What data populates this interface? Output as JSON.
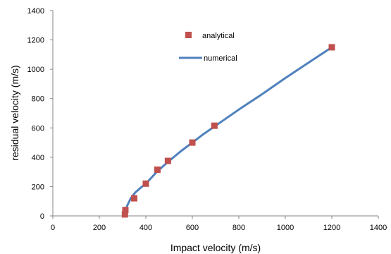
{
  "chart_data": {
    "type": "scatter",
    "xlabel": "Impact velocity (m/s)",
    "ylabel": "residual velocity (m/s)",
    "xlim": [
      0,
      1400
    ],
    "ylim": [
      0,
      1400
    ],
    "xticks": [
      "0",
      "200",
      "400",
      "600",
      "800",
      "1000",
      "1200",
      "1400"
    ],
    "yticks": [
      "0",
      "200",
      "400",
      "600",
      "800",
      "1000",
      "1200",
      "1400"
    ],
    "grid": false,
    "legend_position": "top-center",
    "series": [
      {
        "name": "analytical",
        "kind": "markers",
        "color": "#c0504d",
        "points": [
          [
            310,
            10
          ],
          [
            312,
            40
          ],
          [
            350,
            120
          ],
          [
            400,
            220
          ],
          [
            450,
            315
          ],
          [
            495,
            375
          ],
          [
            600,
            500
          ],
          [
            695,
            615
          ],
          [
            1200,
            1150
          ]
        ]
      },
      {
        "name": "numerical",
        "kind": "line",
        "color": "#4f81bd",
        "points": [
          [
            310,
            0
          ],
          [
            312,
            30
          ],
          [
            320,
            70
          ],
          [
            335,
            120
          ],
          [
            355,
            160
          ],
          [
            380,
            195
          ],
          [
            400,
            220
          ],
          [
            450,
            305
          ],
          [
            500,
            375
          ],
          [
            550,
            440
          ],
          [
            600,
            500
          ],
          [
            650,
            560
          ],
          [
            700,
            615
          ],
          [
            800,
            725
          ],
          [
            900,
            830
          ],
          [
            1000,
            940
          ],
          [
            1100,
            1045
          ],
          [
            1200,
            1150
          ]
        ]
      }
    ]
  }
}
